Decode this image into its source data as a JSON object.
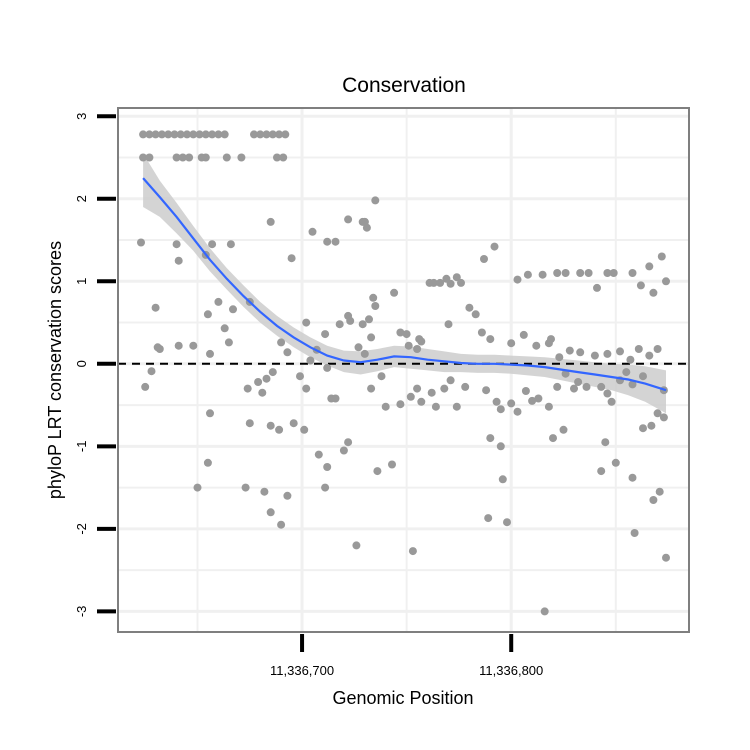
{
  "chart_data": {
    "type": "scatter",
    "title": "Conservation",
    "xlabel": "Genomic Position",
    "ylabel": "phyloP LRT conservation scores",
    "xlim": [
      11336612,
      11336885
    ],
    "ylim": [
      -3.25,
      3.1
    ],
    "x_ticks": [
      {
        "value": 11336700,
        "label": "11,336,700"
      },
      {
        "value": 11336800,
        "label": "11,336,800"
      }
    ],
    "y_ticks": [
      {
        "value": 3,
        "label": "3"
      },
      {
        "value": 2,
        "label": "2"
      },
      {
        "value": 1,
        "label": "1"
      },
      {
        "value": 0,
        "label": "0"
      },
      {
        "value": -1,
        "label": "-1"
      },
      {
        "value": -2,
        "label": "-2"
      },
      {
        "value": -3,
        "label": "-3"
      }
    ],
    "minor_x_gridlines": [
      11336650,
      11336750,
      11336850
    ],
    "minor_y_gridlines": [
      2.5,
      1.5,
      0.5,
      -0.5,
      -1.5,
      -2.5
    ],
    "reference_line": {
      "y": 0,
      "style": "dashed"
    },
    "grid": true,
    "colors": {
      "points": "#999999",
      "smooth": "#3366ff",
      "ribbon": "#cccccc",
      "panel_border": "#7f7f7f",
      "grid": "#f0f0f0"
    },
    "points": [
      [
        11336624,
        2.78
      ],
      [
        11336627,
        2.78
      ],
      [
        11336630,
        2.78
      ],
      [
        11336633,
        2.78
      ],
      [
        11336636,
        2.78
      ],
      [
        11336639,
        2.78
      ],
      [
        11336642,
        2.78
      ],
      [
        11336645,
        2.78
      ],
      [
        11336648,
        2.78
      ],
      [
        11336651,
        2.78
      ],
      [
        11336654,
        2.78
      ],
      [
        11336657,
        2.78
      ],
      [
        11336660,
        2.78
      ],
      [
        11336663,
        2.78
      ],
      [
        11336677,
        2.78
      ],
      [
        11336680,
        2.78
      ],
      [
        11336683,
        2.78
      ],
      [
        11336686,
        2.78
      ],
      [
        11336689,
        2.78
      ],
      [
        11336692,
        2.78
      ],
      [
        11336624,
        2.5
      ],
      [
        11336627,
        2.5
      ],
      [
        11336640,
        2.5
      ],
      [
        11336643,
        2.5
      ],
      [
        11336646,
        2.5
      ],
      [
        11336652,
        2.5
      ],
      [
        11336654,
        2.5
      ],
      [
        11336664,
        2.5
      ],
      [
        11336671,
        2.5
      ],
      [
        11336688,
        2.5
      ],
      [
        11336691,
        2.5
      ],
      [
        11336623,
        1.47
      ],
      [
        11336640,
        1.45
      ],
      [
        11336641,
        1.25
      ],
      [
        11336654,
        1.32
      ],
      [
        11336657,
        1.45
      ],
      [
        11336666,
        1.45
      ],
      [
        11336705,
        1.6
      ],
      [
        11336685,
        1.72
      ],
      [
        11336712,
        1.48
      ],
      [
        11336716,
        1.48
      ],
      [
        11336722,
        1.75
      ],
      [
        11336729,
        1.72
      ],
      [
        11336730,
        1.72
      ],
      [
        11336731,
        1.65
      ],
      [
        11336735,
        1.98
      ],
      [
        11336730,
        1.72
      ],
      [
        11336695,
        1.28
      ],
      [
        11336630,
        0.68
      ],
      [
        11336660,
        0.75
      ],
      [
        11336655,
        0.6
      ],
      [
        11336667,
        0.66
      ],
      [
        11336675,
        0.75
      ],
      [
        11336663,
        0.43
      ],
      [
        11336702,
        0.5
      ],
      [
        11336711,
        0.36
      ],
      [
        11336718,
        0.48
      ],
      [
        11336722,
        0.58
      ],
      [
        11336723,
        0.52
      ],
      [
        11336729,
        0.48
      ],
      [
        11336732,
        0.54
      ],
      [
        11336734,
        0.8
      ],
      [
        11336735,
        0.7
      ],
      [
        11336744,
        0.86
      ],
      [
        11336747,
        0.38
      ],
      [
        11336751,
        0.22
      ],
      [
        11336750,
        0.36
      ],
      [
        11336756,
        0.3
      ],
      [
        11336757,
        0.27
      ],
      [
        11336755,
        0.18
      ],
      [
        11336727,
        0.2
      ],
      [
        11336730,
        0.12
      ],
      [
        11336733,
        0.32
      ],
      [
        11336641,
        0.22
      ],
      [
        11336648,
        0.22
      ],
      [
        11336656,
        0.12
      ],
      [
        11336665,
        0.26
      ],
      [
        11336693,
        0.14
      ],
      [
        11336704,
        0.04
      ],
      [
        11336707,
        0.17
      ],
      [
        11336690,
        0.26
      ],
      [
        11336625,
        -0.28
      ],
      [
        11336628,
        -0.09
      ],
      [
        11336632,
        0.18
      ],
      [
        11336631,
        0.2
      ],
      [
        11336674,
        -0.3
      ],
      [
        11336679,
        -0.22
      ],
      [
        11336681,
        -0.35
      ],
      [
        11336683,
        -0.18
      ],
      [
        11336686,
        -0.1
      ],
      [
        11336699,
        -0.15
      ],
      [
        11336702,
        -0.3
      ],
      [
        11336712,
        -0.05
      ],
      [
        11336714,
        -0.42
      ],
      [
        11336716,
        -0.42
      ],
      [
        11336733,
        -0.3
      ],
      [
        11336738,
        -0.15
      ],
      [
        11336740,
        -0.52
      ],
      [
        11336747,
        -0.49
      ],
      [
        11336752,
        -0.4
      ],
      [
        11336755,
        -0.3
      ],
      [
        11336757,
        -0.46
      ],
      [
        11336762,
        -0.35
      ],
      [
        11336764,
        -0.52
      ],
      [
        11336768,
        -0.3
      ],
      [
        11336771,
        -0.2
      ],
      [
        11336774,
        -0.52
      ],
      [
        11336778,
        -0.28
      ],
      [
        11336788,
        -0.32
      ],
      [
        11336793,
        -0.46
      ],
      [
        11336795,
        -0.55
      ],
      [
        11336800,
        -0.48
      ],
      [
        11336803,
        -0.58
      ],
      [
        11336807,
        -0.33
      ],
      [
        11336810,
        -0.45
      ],
      [
        11336813,
        -0.42
      ],
      [
        11336818,
        -0.52
      ],
      [
        11336822,
        -0.28
      ],
      [
        11336826,
        -0.12
      ],
      [
        11336830,
        -0.3
      ],
      [
        11336832,
        -0.22
      ],
      [
        11336836,
        -0.28
      ],
      [
        11336843,
        -0.28
      ],
      [
        11336846,
        -0.36
      ],
      [
        11336848,
        -0.46
      ],
      [
        11336852,
        -0.2
      ],
      [
        11336855,
        -0.1
      ],
      [
        11336858,
        -0.25
      ],
      [
        11336863,
        -0.15
      ],
      [
        11336873,
        -0.32
      ],
      [
        11336656,
        -0.6
      ],
      [
        11336675,
        -0.72
      ],
      [
        11336685,
        -0.75
      ],
      [
        11336689,
        -0.8
      ],
      [
        11336696,
        -0.72
      ],
      [
        11336701,
        -0.8
      ],
      [
        11336720,
        -1.05
      ],
      [
        11336722,
        -0.95
      ],
      [
        11336690,
        -1.95
      ],
      [
        11336693,
        -1.6
      ],
      [
        11336685,
        -1.8
      ],
      [
        11336682,
        -1.55
      ],
      [
        11336673,
        -1.5
      ],
      [
        11336655,
        -1.2
      ],
      [
        11336650,
        -1.5
      ],
      [
        11336708,
        -1.1
      ],
      [
        11336712,
        -1.25
      ],
      [
        11336711,
        -1.5
      ],
      [
        11336736,
        -1.3
      ],
      [
        11336743,
        -1.22
      ],
      [
        11336753,
        -2.27
      ],
      [
        11336726,
        -2.2
      ],
      [
        11336790,
        -0.9
      ],
      [
        11336795,
        -1.0
      ],
      [
        11336796,
        -1.4
      ],
      [
        11336798,
        -1.92
      ],
      [
        11336789,
        -1.87
      ],
      [
        11336820,
        -0.9
      ],
      [
        11336825,
        -0.8
      ],
      [
        11336845,
        -0.95
      ],
      [
        11336843,
        -1.3
      ],
      [
        11336850,
        -1.2
      ],
      [
        11336858,
        -1.38
      ],
      [
        11336863,
        -0.78
      ],
      [
        11336867,
        -0.75
      ],
      [
        11336870,
        -0.6
      ],
      [
        11336873,
        -0.65
      ],
      [
        11336871,
        -1.55
      ],
      [
        11336868,
        -1.65
      ],
      [
        11336874,
        -2.35
      ],
      [
        11336859,
        -2.05
      ],
      [
        11336816,
        -3.0
      ],
      [
        11336774,
        1.05
      ],
      [
        11336776,
        0.98
      ],
      [
        11336787,
        1.27
      ],
      [
        11336792,
        1.42
      ],
      [
        11336803,
        1.02
      ],
      [
        11336808,
        1.08
      ],
      [
        11336815,
        1.08
      ],
      [
        11336822,
        1.1
      ],
      [
        11336826,
        1.1
      ],
      [
        11336833,
        1.1
      ],
      [
        11336837,
        1.1
      ],
      [
        11336841,
        0.92
      ],
      [
        11336846,
        1.1
      ],
      [
        11336849,
        1.1
      ],
      [
        11336858,
        1.1
      ],
      [
        11336862,
        0.95
      ],
      [
        11336866,
        1.18
      ],
      [
        11336868,
        0.86
      ],
      [
        11336872,
        1.3
      ],
      [
        11336874,
        1.0
      ],
      [
        11336761,
        0.98
      ],
      [
        11336763,
        0.98
      ],
      [
        11336766,
        0.98
      ],
      [
        11336769,
        1.03
      ],
      [
        11336771,
        0.97
      ],
      [
        11336780,
        0.68
      ],
      [
        11336783,
        0.6
      ],
      [
        11336770,
        0.48
      ],
      [
        11336786,
        0.38
      ],
      [
        11336790,
        0.3
      ],
      [
        11336800,
        0.25
      ],
      [
        11336806,
        0.35
      ],
      [
        11336812,
        0.22
      ],
      [
        11336818,
        0.25
      ],
      [
        11336819,
        0.3
      ],
      [
        11336823,
        0.08
      ],
      [
        11336828,
        0.16
      ],
      [
        11336833,
        0.14
      ],
      [
        11336840,
        0.1
      ],
      [
        11336846,
        0.12
      ],
      [
        11336852,
        0.15
      ],
      [
        11336857,
        0.05
      ],
      [
        11336861,
        0.18
      ],
      [
        11336866,
        0.1
      ],
      [
        11336870,
        0.18
      ]
    ],
    "smooth_line": [
      [
        11336624,
        2.25
      ],
      [
        11336632,
        2.02
      ],
      [
        11336640,
        1.78
      ],
      [
        11336648,
        1.52
      ],
      [
        11336656,
        1.26
      ],
      [
        11336664,
        1.03
      ],
      [
        11336672,
        0.82
      ],
      [
        11336680,
        0.63
      ],
      [
        11336688,
        0.46
      ],
      [
        11336696,
        0.32
      ],
      [
        11336704,
        0.2
      ],
      [
        11336712,
        0.1
      ],
      [
        11336720,
        0.04
      ],
      [
        11336728,
        0.02
      ],
      [
        11336736,
        0.05
      ],
      [
        11336744,
        0.09
      ],
      [
        11336752,
        0.08
      ],
      [
        11336760,
        0.05
      ],
      [
        11336768,
        0.03
      ],
      [
        11336776,
        0.01
      ],
      [
        11336784,
        0.0
      ],
      [
        11336792,
        0.0
      ],
      [
        11336800,
        -0.01
      ],
      [
        11336808,
        -0.02
      ],
      [
        11336816,
        -0.04
      ],
      [
        11336824,
        -0.07
      ],
      [
        11336832,
        -0.1
      ],
      [
        11336840,
        -0.13
      ],
      [
        11336848,
        -0.16
      ],
      [
        11336856,
        -0.19
      ],
      [
        11336864,
        -0.24
      ],
      [
        11336874,
        -0.32
      ]
    ],
    "confidence_band": [
      [
        11336624,
        2.55,
        1.9
      ],
      [
        11336632,
        2.22,
        1.78
      ],
      [
        11336640,
        1.95,
        1.58
      ],
      [
        11336648,
        1.67,
        1.37
      ],
      [
        11336656,
        1.4,
        1.12
      ],
      [
        11336664,
        1.16,
        0.9
      ],
      [
        11336672,
        0.95,
        0.69
      ],
      [
        11336680,
        0.75,
        0.5
      ],
      [
        11336688,
        0.58,
        0.34
      ],
      [
        11336696,
        0.44,
        0.2
      ],
      [
        11336704,
        0.32,
        0.08
      ],
      [
        11336712,
        0.22,
        -0.02
      ],
      [
        11336720,
        0.16,
        -0.1
      ],
      [
        11336728,
        0.15,
        -0.13
      ],
      [
        11336736,
        0.18,
        -0.09
      ],
      [
        11336744,
        0.22,
        -0.04
      ],
      [
        11336752,
        0.21,
        -0.06
      ],
      [
        11336760,
        0.18,
        -0.08
      ],
      [
        11336768,
        0.15,
        -0.1
      ],
      [
        11336776,
        0.12,
        -0.1
      ],
      [
        11336784,
        0.11,
        -0.11
      ],
      [
        11336792,
        0.11,
        -0.11
      ],
      [
        11336800,
        0.1,
        -0.12
      ],
      [
        11336808,
        0.09,
        -0.14
      ],
      [
        11336816,
        0.08,
        -0.16
      ],
      [
        11336824,
        0.06,
        -0.2
      ],
      [
        11336832,
        0.04,
        -0.24
      ],
      [
        11336840,
        0.02,
        -0.28
      ],
      [
        11336848,
        0.0,
        -0.32
      ],
      [
        11336856,
        -0.01,
        -0.38
      ],
      [
        11336864,
        -0.03,
        -0.46
      ],
      [
        11336874,
        -0.08,
        -0.6
      ]
    ]
  }
}
